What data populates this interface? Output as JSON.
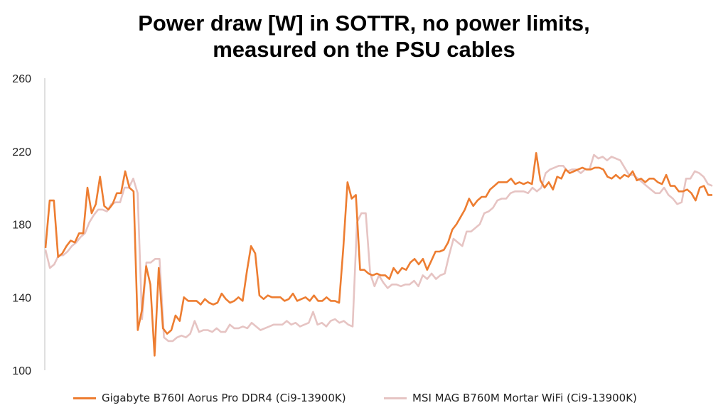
{
  "chart_data": {
    "type": "line",
    "title_line1": "Power draw [W] in SOTTR, no power limits,",
    "title_line2": "measured on the PSU cables",
    "xlabel": "",
    "ylabel": "",
    "ylim": [
      100,
      260
    ],
    "yticks": [
      100,
      140,
      180,
      220,
      260
    ],
    "grid": false,
    "legend_position": "bottom",
    "series": [
      {
        "name": "Gigabyte B760I Aorus Pro DDR4 (Ci9-13900K)",
        "color": "#ED7D31",
        "values": [
          167,
          193,
          193,
          162,
          164,
          168,
          171,
          170,
          175,
          175,
          200,
          186,
          191,
          206,
          190,
          188,
          191,
          197,
          197,
          209,
          200,
          198,
          122,
          133,
          157,
          147,
          108,
          156,
          123,
          120,
          122,
          130,
          127,
          140,
          138,
          138,
          138,
          136,
          139,
          137,
          136,
          137,
          142,
          139,
          137,
          138,
          140,
          138,
          154,
          168,
          164,
          141,
          139,
          141,
          140,
          140,
          140,
          138,
          139,
          142,
          138,
          139,
          140,
          138,
          141,
          138,
          138,
          140,
          138,
          138,
          137,
          167,
          203,
          194,
          196,
          155,
          155,
          153,
          152,
          153,
          152,
          152,
          150,
          156,
          153,
          156,
          155,
          159,
          161,
          158,
          161,
          155,
          160,
          165,
          165,
          166,
          170,
          177,
          180,
          184,
          188,
          194,
          190,
          193,
          195,
          195,
          199,
          201,
          203,
          203,
          203,
          205,
          202,
          203,
          202,
          203,
          202,
          219,
          204,
          200,
          203,
          199,
          206,
          205,
          210,
          208,
          209,
          210,
          211,
          210,
          210,
          211,
          211,
          210,
          206,
          205,
          207,
          205,
          207,
          206,
          209,
          204,
          205,
          203,
          205,
          205,
          203,
          202,
          207,
          201,
          201,
          198,
          198,
          199,
          197,
          193,
          200,
          201,
          196,
          196
        ],
        "bold": true
      },
      {
        "name": "MSI MAG B760M Mortar WiFi (Ci9-13900K)",
        "color": "#E6C4C3",
        "values": [
          166,
          156,
          158,
          163,
          163,
          165,
          168,
          170,
          173,
          175,
          181,
          185,
          188,
          188,
          187,
          191,
          192,
          192,
          200,
          200,
          205,
          197,
          128,
          159,
          159,
          161,
          161,
          118,
          116,
          116,
          118,
          119,
          118,
          120,
          127,
          121,
          122,
          122,
          121,
          123,
          121,
          121,
          125,
          123,
          123,
          124,
          123,
          126,
          124,
          122,
          123,
          124,
          125,
          125,
          125,
          127,
          125,
          126,
          124,
          125,
          126,
          132,
          125,
          126,
          124,
          127,
          128,
          126,
          127,
          125,
          124,
          181,
          186,
          186,
          153,
          146,
          152,
          148,
          145,
          147,
          147,
          146,
          147,
          147,
          149,
          146,
          152,
          150,
          153,
          150,
          152,
          153,
          163,
          172,
          170,
          168,
          176,
          176,
          178,
          180,
          186,
          187,
          189,
          193,
          194,
          194,
          197,
          198,
          198,
          198,
          197,
          200,
          198,
          200,
          208,
          210,
          211,
          212,
          212,
          209,
          210,
          210,
          208,
          210,
          210,
          218,
          216,
          217,
          215,
          217,
          216,
          215,
          211,
          207,
          207,
          205,
          203,
          201,
          199,
          197,
          197,
          200,
          196,
          194,
          191,
          192,
          205,
          205,
          209,
          208,
          206,
          202,
          201
        ],
        "bold": false
      }
    ]
  }
}
